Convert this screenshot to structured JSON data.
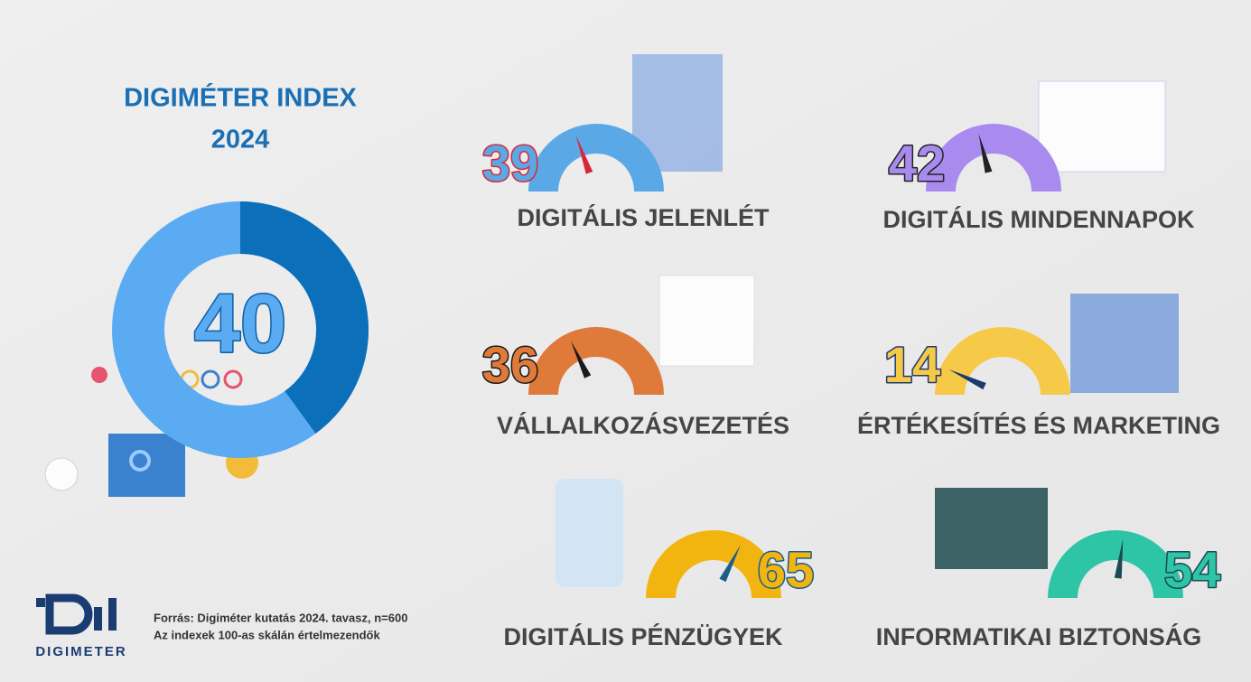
{
  "chart_data": [
    {
      "type": "donut",
      "title": [
        "DIGIMÉTER INDEX",
        "2024"
      ],
      "value": 40,
      "lim": [
        0,
        100
      ],
      "color": "#0b6fba",
      "track_color": "#5aabf2",
      "text_fill": "#5aabf2",
      "text_stroke": "#0b5fa5"
    },
    {
      "type": "gauge",
      "title": "DIGITÁLIS JELENLÉT",
      "value": 39,
      "lim": [
        0,
        100
      ],
      "color": "#5aa9e6",
      "needle_color": "#d62839"
    },
    {
      "type": "gauge",
      "title": "DIGITÁLIS MINDENNAPOK",
      "value": 42,
      "lim": [
        0,
        100
      ],
      "color": "#a98bf0",
      "needle_color": "#222222"
    },
    {
      "type": "gauge",
      "title": "VÁLLALKOZÁSVEZETÉS",
      "value": 36,
      "lim": [
        0,
        100
      ],
      "color": "#e07a3a",
      "needle_color": "#1a1a1a"
    },
    {
      "type": "gauge",
      "title": "ÉRTÉKESÍTÉS ÉS MARKETING",
      "value": 14,
      "lim": [
        0,
        100
      ],
      "color": "#f7c948",
      "needle_color": "#1d3a6e"
    },
    {
      "type": "gauge",
      "title": "DIGITÁLIS PÉNZÜGYEK",
      "value": 65,
      "lim": [
        0,
        100
      ],
      "color": "#f2b50f",
      "needle_color": "#1b5e8c"
    },
    {
      "type": "gauge",
      "title": "INFORMATIKAI BIZTONSÁG",
      "value": 54,
      "lim": [
        0,
        100
      ],
      "color": "#2ec4a6",
      "needle_color": "#1b4a55"
    }
  ],
  "source": [
    "Forrás: Digiméter kutatás 2024. tavasz, n=600",
    "Az indexek 100-as skálán értelmezendők"
  ],
  "logo": "DIGIMETER"
}
